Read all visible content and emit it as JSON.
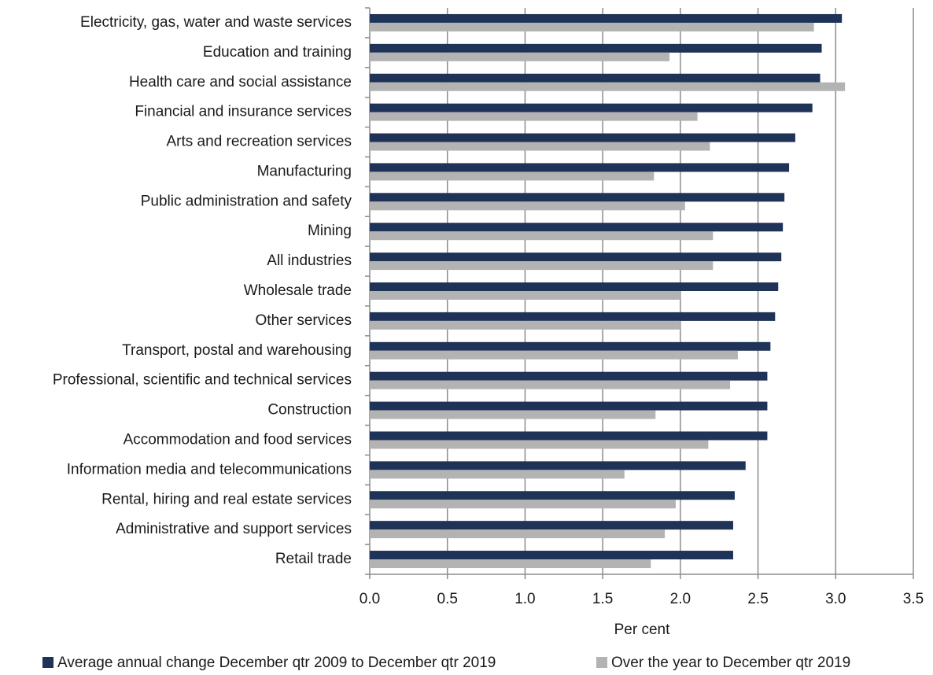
{
  "chart_data": {
    "type": "bar",
    "orientation": "horizontal",
    "x_label": "Per cent",
    "categories": [
      "Electricity, gas, water and waste services",
      "Education and training",
      "Health care and social assistance",
      "Financial and insurance services",
      "Arts and recreation services",
      "Manufacturing",
      "Public administration and safety",
      "Mining",
      "All industries",
      "Wholesale trade",
      "Other services",
      "Transport, postal and warehousing",
      "Professional, scientific and technical services",
      "Construction",
      "Accommodation and food services",
      "Information media and telecommunications",
      "Rental, hiring and real estate services",
      "Administrative and support services",
      "Retail trade"
    ],
    "series": [
      {
        "name": "Average annual change December qtr 2009 to December qtr 2019",
        "color": "#1f3257",
        "values": [
          3.04,
          2.91,
          2.9,
          2.85,
          2.74,
          2.7,
          2.67,
          2.66,
          2.65,
          2.63,
          2.61,
          2.58,
          2.56,
          2.56,
          2.56,
          2.42,
          2.35,
          2.34,
          2.34
        ]
      },
      {
        "name": "Over the year to December qtr 2019",
        "color": "#b3b3b3",
        "values": [
          2.86,
          1.93,
          3.06,
          2.11,
          2.19,
          1.83,
          2.03,
          2.21,
          2.21,
          2.0,
          2.0,
          2.37,
          2.32,
          1.84,
          2.18,
          1.64,
          1.97,
          1.9,
          1.81
        ]
      }
    ],
    "xlim": [
      0,
      3.5
    ],
    "xticks": [
      {
        "value": 0,
        "label": "0.0"
      },
      0.5,
      {
        "value": 1,
        "label": "1.0"
      },
      1.5,
      {
        "value": 2,
        "label": "2.0"
      },
      2.5,
      {
        "value": 3,
        "label": "3.0"
      },
      3.5
    ],
    "grid": true,
    "legend": "bottom"
  }
}
